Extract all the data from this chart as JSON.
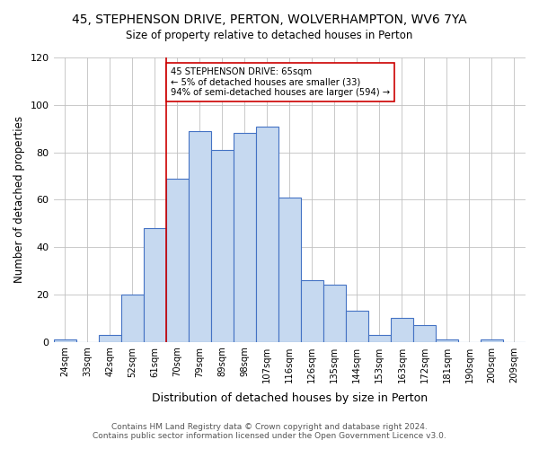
{
  "title": "45, STEPHENSON DRIVE, PERTON, WOLVERHAMPTON, WV6 7YA",
  "subtitle": "Size of property relative to detached houses in Perton",
  "xlabel": "Distribution of detached houses by size in Perton",
  "ylabel": "Number of detached properties",
  "bin_labels": [
    "24sqm",
    "33sqm",
    "42sqm",
    "52sqm",
    "61sqm",
    "70sqm",
    "79sqm",
    "89sqm",
    "98sqm",
    "107sqm",
    "116sqm",
    "126sqm",
    "135sqm",
    "144sqm",
    "153sqm",
    "163sqm",
    "172sqm",
    "181sqm",
    "190sqm",
    "200sqm",
    "209sqm"
  ],
  "bar_values": [
    1,
    0,
    3,
    20,
    48,
    69,
    89,
    81,
    88,
    91,
    61,
    26,
    24,
    13,
    3,
    10,
    7,
    1,
    0,
    1,
    0
  ],
  "bar_color": "#c6d9f0",
  "bar_edge_color": "#4472c4",
  "vline_x": 4.5,
  "vline_color": "#cc0000",
  "annotation_text": "45 STEPHENSON DRIVE: 65sqm\n← 5% of detached houses are smaller (33)\n94% of semi-detached houses are larger (594) →",
  "annotation_box_color": "#ffffff",
  "annotation_box_edge_color": "#cc0000",
  "ylim": [
    0,
    120
  ],
  "yticks": [
    0,
    20,
    40,
    60,
    80,
    100,
    120
  ],
  "footer_line1": "Contains HM Land Registry data © Crown copyright and database right 2024.",
  "footer_line2": "Contains public sector information licensed under the Open Government Licence v3.0.",
  "bg_color": "#ffffff",
  "grid_color": "#c0c0c0"
}
